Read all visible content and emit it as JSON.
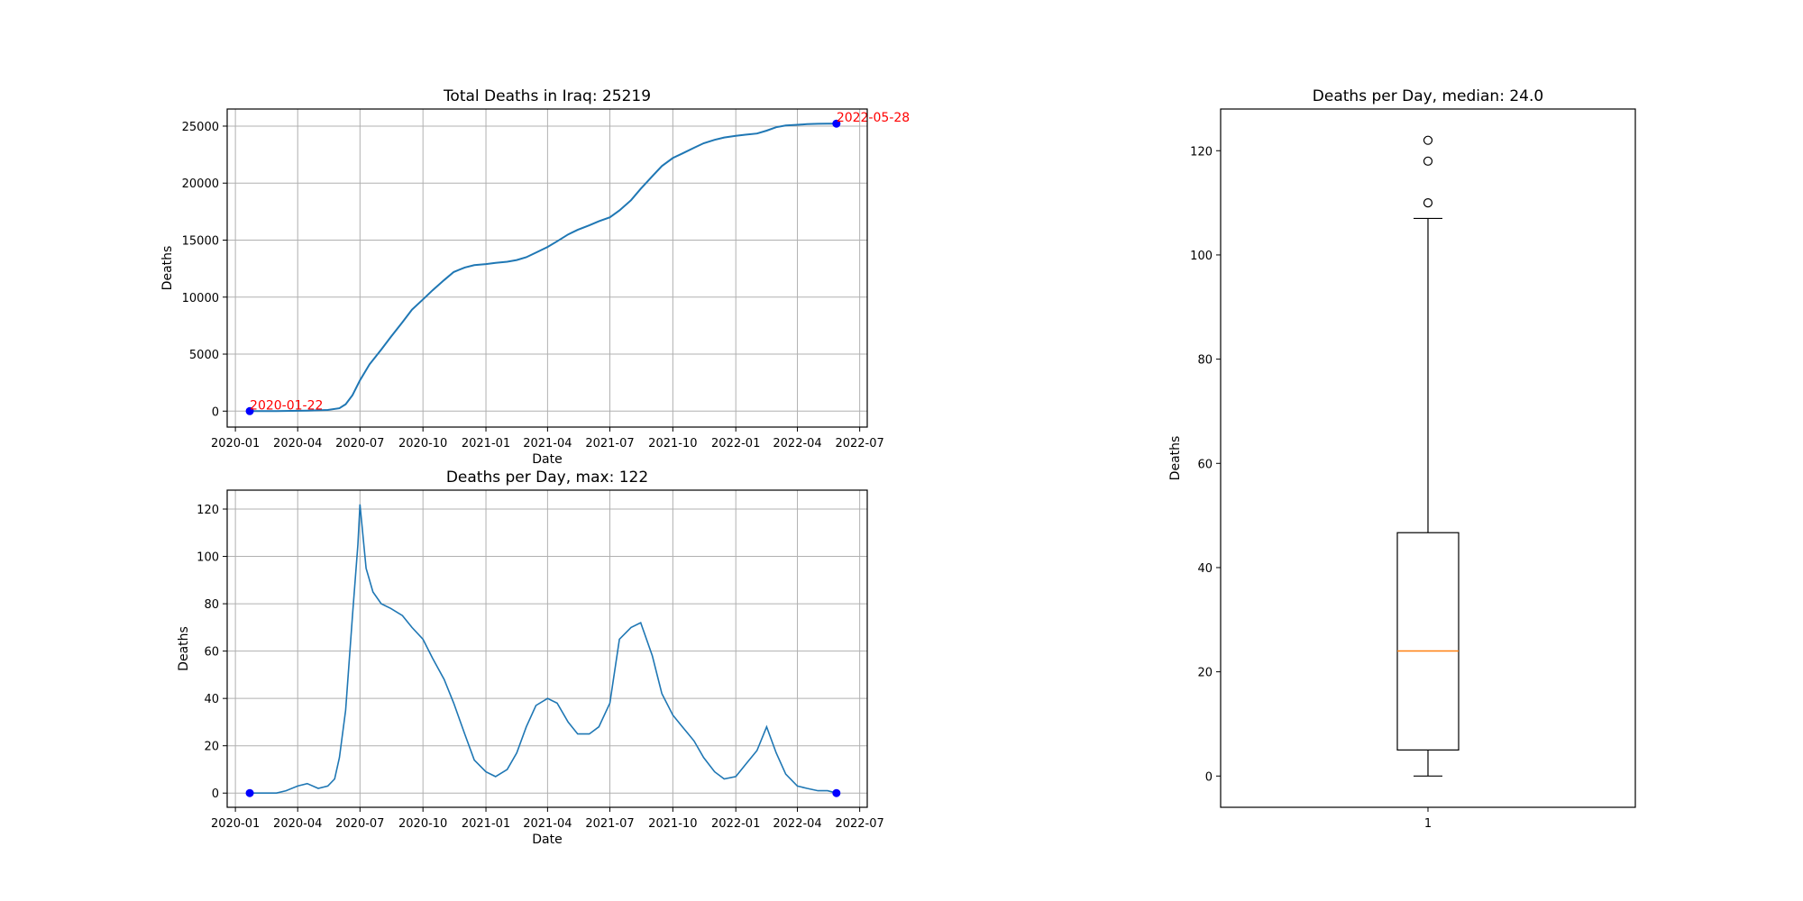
{
  "chart_data": [
    {
      "type": "line",
      "title": "Total Deaths in Iraq: 25219",
      "xlabel": "Date",
      "ylabel": "Deaths",
      "xlim": [
        "2019-12-20",
        "2022-07-12"
      ],
      "ylim": [
        -1400,
        26500
      ],
      "x_ticks": [
        "2020-01",
        "2020-04",
        "2020-07",
        "2020-10",
        "2021-01",
        "2021-04",
        "2021-07",
        "2021-10",
        "2022-01",
        "2022-04",
        "2022-07"
      ],
      "y_ticks": [
        0,
        5000,
        10000,
        15000,
        20000,
        25000
      ],
      "y_tick_labels": [
        "0",
        "5000",
        "10000",
        "15000",
        "20000",
        "25000"
      ],
      "grid": true,
      "series": [
        {
          "points": [
            [
              "2020-01-22",
              0
            ],
            [
              "2020-03-01",
              0
            ],
            [
              "2020-04-15",
              50
            ],
            [
              "2020-05-15",
              100
            ],
            [
              "2020-06-01",
              250
            ],
            [
              "2020-06-10",
              600
            ],
            [
              "2020-06-20",
              1400
            ],
            [
              "2020-07-01",
              2700
            ],
            [
              "2020-07-15",
              4100
            ],
            [
              "2020-08-01",
              5400
            ],
            [
              "2020-08-15",
              6500
            ],
            [
              "2020-09-01",
              7800
            ],
            [
              "2020-09-15",
              8900
            ],
            [
              "2020-10-01",
              9800
            ],
            [
              "2020-10-15",
              10600
            ],
            [
              "2020-11-01",
              11500
            ],
            [
              "2020-11-15",
              12200
            ],
            [
              "2020-12-01",
              12600
            ],
            [
              "2020-12-15",
              12800
            ],
            [
              "2021-01-01",
              12900
            ],
            [
              "2021-01-15",
              13000
            ],
            [
              "2021-02-01",
              13100
            ],
            [
              "2021-02-15",
              13250
            ],
            [
              "2021-03-01",
              13500
            ],
            [
              "2021-03-15",
              13900
            ],
            [
              "2021-04-01",
              14400
            ],
            [
              "2021-04-15",
              14900
            ],
            [
              "2021-05-01",
              15500
            ],
            [
              "2021-05-15",
              15900
            ],
            [
              "2021-06-01",
              16300
            ],
            [
              "2021-06-15",
              16650
            ],
            [
              "2021-07-01",
              17000
            ],
            [
              "2021-07-15",
              17600
            ],
            [
              "2021-08-01",
              18500
            ],
            [
              "2021-08-15",
              19500
            ],
            [
              "2021-09-01",
              20600
            ],
            [
              "2021-09-15",
              21500
            ],
            [
              "2021-10-01",
              22200
            ],
            [
              "2021-10-15",
              22600
            ],
            [
              "2021-11-01",
              23100
            ],
            [
              "2021-11-15",
              23500
            ],
            [
              "2021-12-01",
              23800
            ],
            [
              "2021-12-15",
              24000
            ],
            [
              "2022-01-01",
              24150
            ],
            [
              "2022-01-15",
              24250
            ],
            [
              "2022-02-01",
              24350
            ],
            [
              "2022-02-15",
              24600
            ],
            [
              "2022-03-01",
              24900
            ],
            [
              "2022-03-15",
              25050
            ],
            [
              "2022-04-01",
              25120
            ],
            [
              "2022-04-15",
              25170
            ],
            [
              "2022-05-01",
              25200
            ],
            [
              "2022-05-15",
              25210
            ],
            [
              "2022-05-28",
              25219
            ]
          ]
        }
      ],
      "markers": [
        {
          "x": "2020-01-22",
          "y": 0,
          "label": "2020-01-22",
          "color": "#ff0000"
        },
        {
          "x": "2022-05-28",
          "y": 25219,
          "label": "2022-05-28",
          "color": "#ff0000"
        }
      ]
    },
    {
      "type": "line",
      "title": "Deaths per Day, max: 122",
      "xlabel": "Date",
      "ylabel": "Deaths",
      "xlim": [
        "2019-12-20",
        "2022-07-12"
      ],
      "ylim": [
        -6,
        128
      ],
      "x_ticks": [
        "2020-01",
        "2020-04",
        "2020-07",
        "2020-10",
        "2021-01",
        "2021-04",
        "2021-07",
        "2021-10",
        "2022-01",
        "2022-04",
        "2022-07"
      ],
      "y_ticks": [
        0,
        20,
        40,
        60,
        80,
        100,
        120
      ],
      "y_tick_labels": [
        "0",
        "20",
        "40",
        "60",
        "80",
        "100",
        "120"
      ],
      "grid": true,
      "series": [
        {
          "points": [
            [
              "2020-01-22",
              0
            ],
            [
              "2020-03-01",
              0
            ],
            [
              "2020-03-15",
              1
            ],
            [
              "2020-04-01",
              3
            ],
            [
              "2020-04-15",
              4
            ],
            [
              "2020-05-01",
              2
            ],
            [
              "2020-05-15",
              3
            ],
            [
              "2020-05-25",
              6
            ],
            [
              "2020-06-01",
              15
            ],
            [
              "2020-06-10",
              35
            ],
            [
              "2020-06-20",
              75
            ],
            [
              "2020-06-28",
              105
            ],
            [
              "2020-07-01",
              122
            ],
            [
              "2020-07-10",
              95
            ],
            [
              "2020-07-20",
              85
            ],
            [
              "2020-08-01",
              80
            ],
            [
              "2020-08-15",
              78
            ],
            [
              "2020-09-01",
              75
            ],
            [
              "2020-09-15",
              70
            ],
            [
              "2020-10-01",
              65
            ],
            [
              "2020-10-15",
              57
            ],
            [
              "2020-11-01",
              48
            ],
            [
              "2020-11-15",
              38
            ],
            [
              "2020-12-01",
              25
            ],
            [
              "2020-12-15",
              14
            ],
            [
              "2021-01-01",
              9
            ],
            [
              "2021-01-15",
              7
            ],
            [
              "2021-02-01",
              10
            ],
            [
              "2021-02-15",
              17
            ],
            [
              "2021-03-01",
              28
            ],
            [
              "2021-03-15",
              37
            ],
            [
              "2021-04-01",
              40
            ],
            [
              "2021-04-15",
              38
            ],
            [
              "2021-05-01",
              30
            ],
            [
              "2021-05-15",
              25
            ],
            [
              "2021-06-01",
              25
            ],
            [
              "2021-06-15",
              28
            ],
            [
              "2021-07-01",
              38
            ],
            [
              "2021-07-15",
              65
            ],
            [
              "2021-08-01",
              70
            ],
            [
              "2021-08-15",
              72
            ],
            [
              "2021-09-01",
              58
            ],
            [
              "2021-09-15",
              42
            ],
            [
              "2021-10-01",
              33
            ],
            [
              "2021-10-15",
              28
            ],
            [
              "2021-11-01",
              22
            ],
            [
              "2021-11-15",
              15
            ],
            [
              "2021-12-01",
              9
            ],
            [
              "2021-12-15",
              6
            ],
            [
              "2022-01-01",
              7
            ],
            [
              "2022-01-15",
              12
            ],
            [
              "2022-02-01",
              18
            ],
            [
              "2022-02-15",
              28
            ],
            [
              "2022-03-01",
              17
            ],
            [
              "2022-03-15",
              8
            ],
            [
              "2022-04-01",
              3
            ],
            [
              "2022-04-15",
              2
            ],
            [
              "2022-05-01",
              1
            ],
            [
              "2022-05-15",
              1
            ],
            [
              "2022-05-28",
              0
            ]
          ]
        }
      ],
      "markers": [
        {
          "x": "2020-01-22",
          "y": 0
        },
        {
          "x": "2022-05-28",
          "y": 0
        }
      ]
    },
    {
      "type": "box",
      "title": "Deaths per Day, median: 24.0",
      "ylabel": "Deaths",
      "ylim": [
        -6,
        128
      ],
      "y_ticks": [
        0,
        20,
        40,
        60,
        80,
        100,
        120
      ],
      "y_tick_labels": [
        "0",
        "20",
        "40",
        "60",
        "80",
        "100",
        "120"
      ],
      "x_tick_labels": [
        "1"
      ],
      "grid": false,
      "box": {
        "min": 0,
        "q1": 5,
        "median": 24.0,
        "q3": 46.7,
        "max": 107,
        "fliers": [
          110,
          118,
          122
        ]
      },
      "median_color": "#ff7f0e"
    }
  ]
}
